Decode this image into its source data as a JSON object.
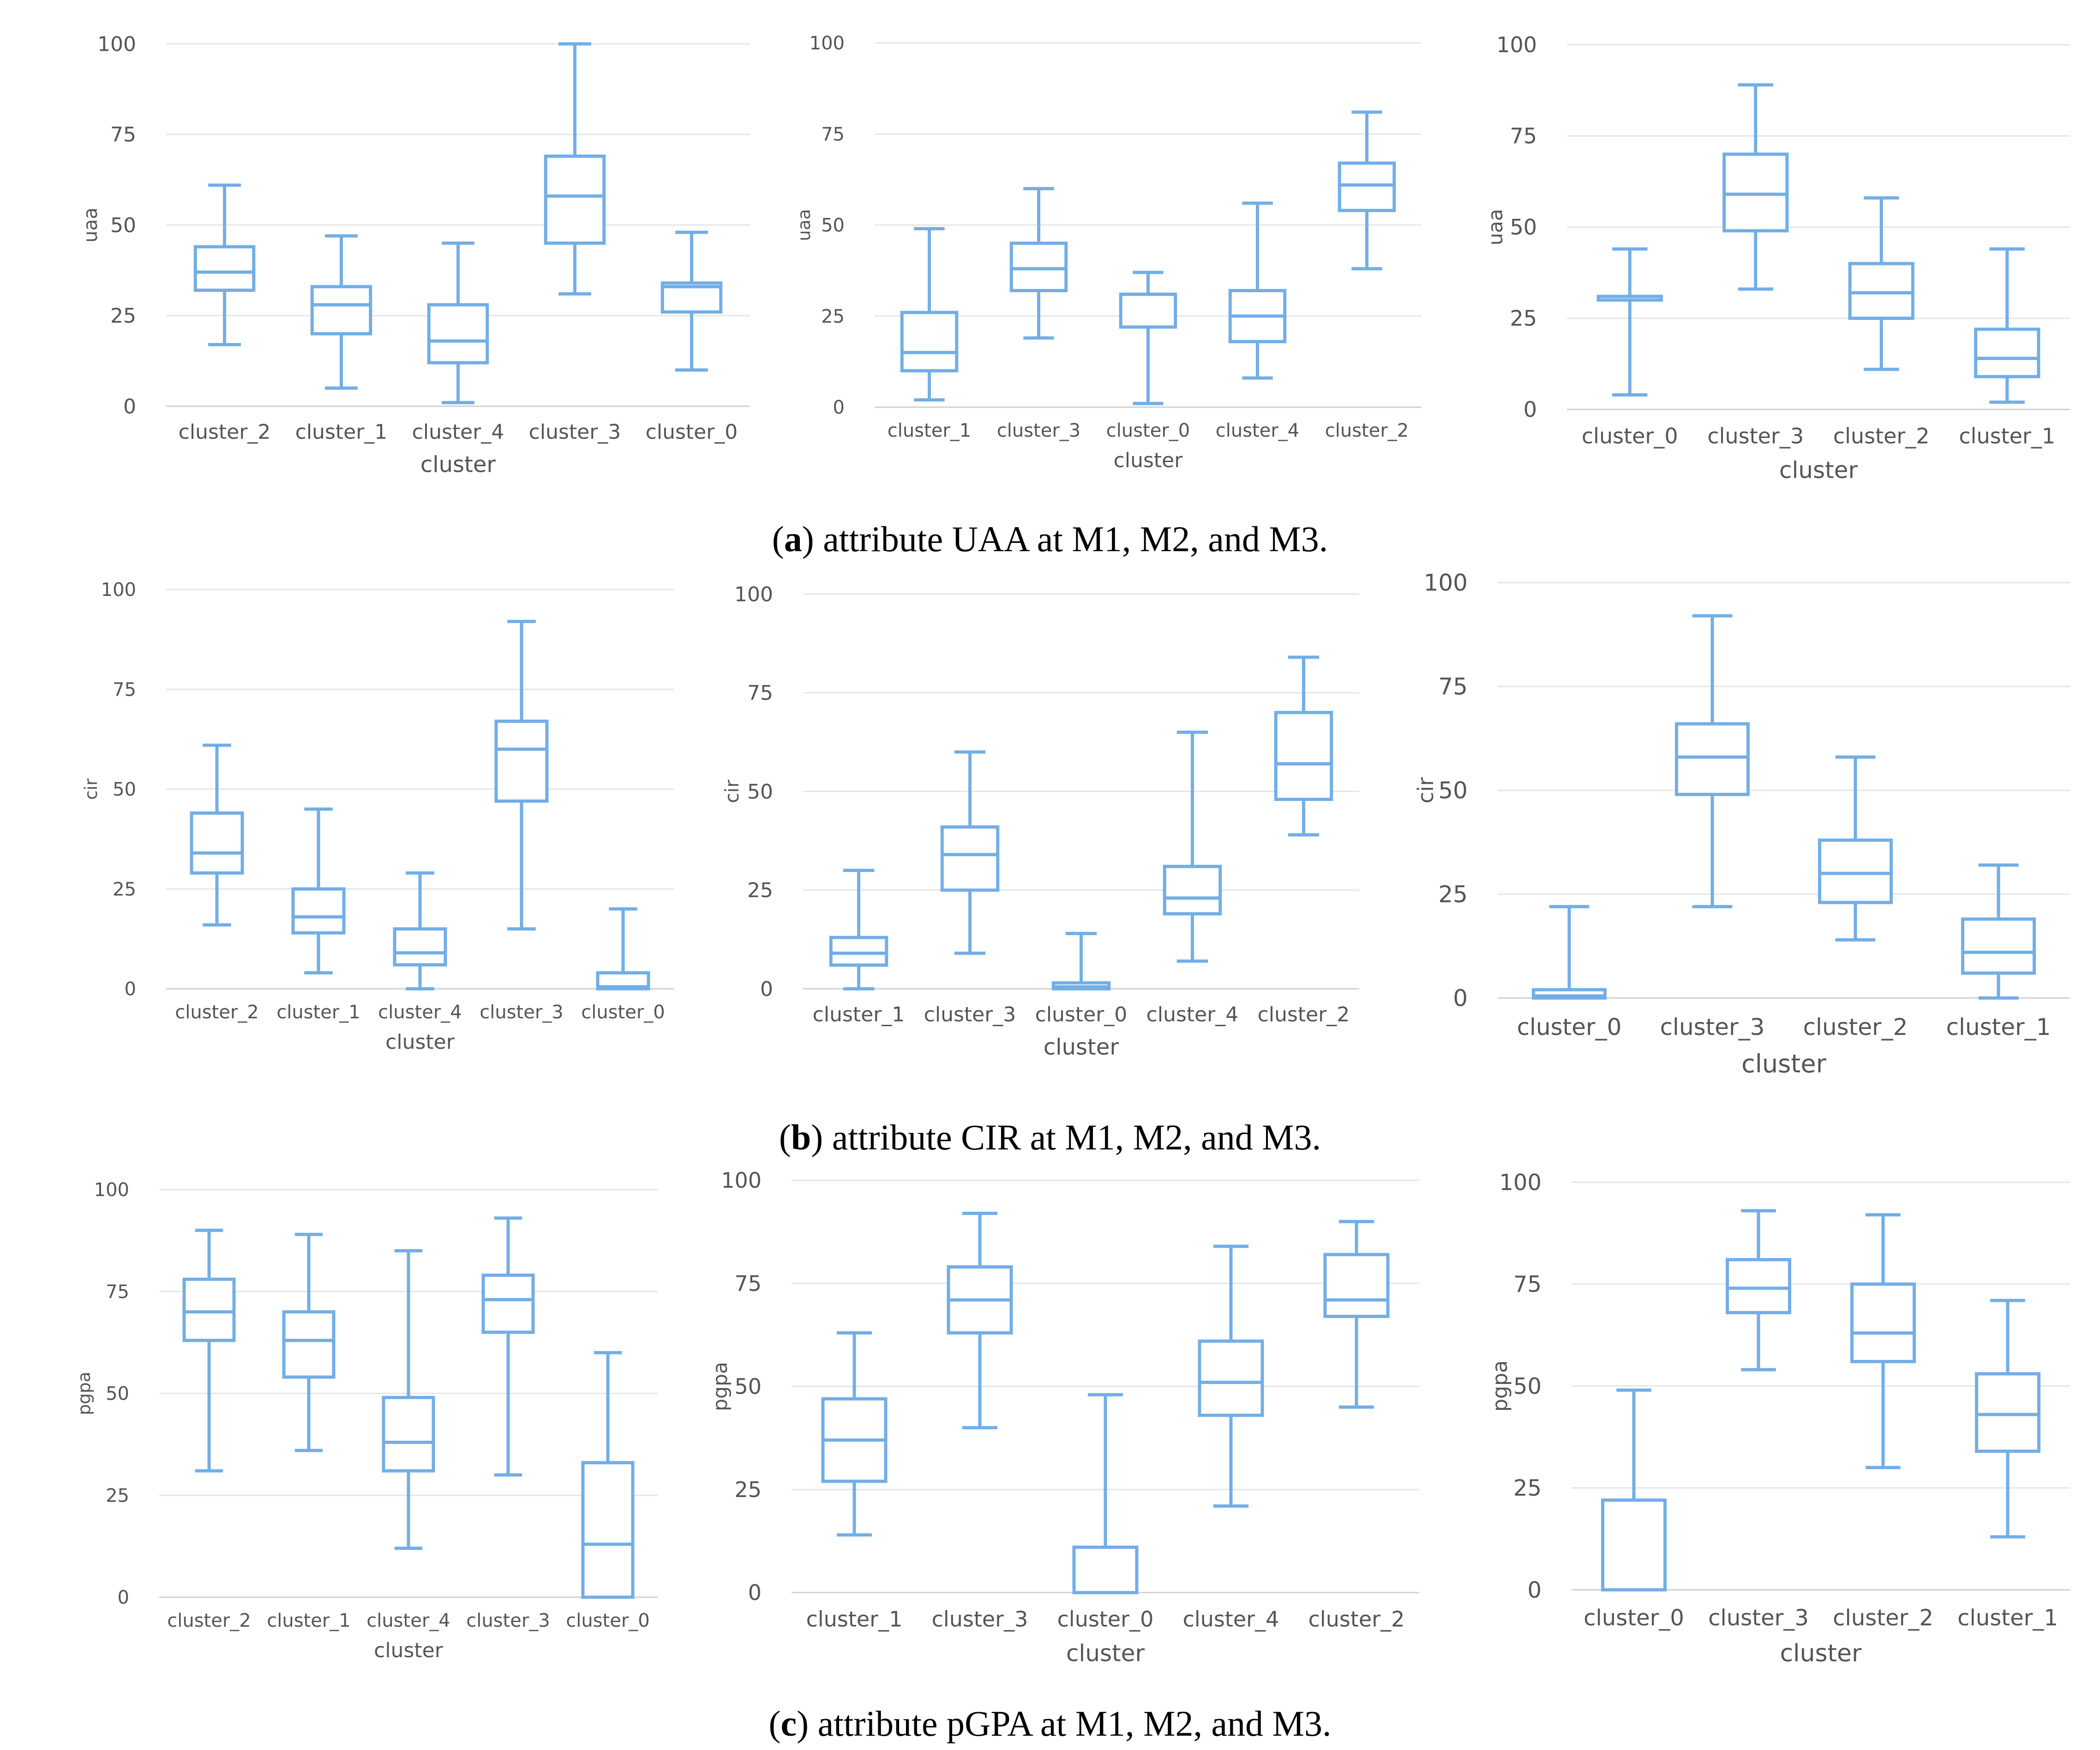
{
  "figure": {
    "captions": [
      {
        "letter": "a",
        "text": ") attribute UAA at M1, M2, and M3."
      },
      {
        "letter": "b",
        "text": ") attribute CIR at M1, M2, and M3."
      },
      {
        "letter": "c",
        "text": ") attribute pGPA at M1, M2, and M3."
      }
    ]
  },
  "style": {
    "box_color": "#72aee6",
    "grid_color": "#e6e6e6",
    "tick_color": "#555555"
  },
  "chart_data": [
    {
      "type": "box",
      "panel": "a-M1",
      "xlabel": "cluster",
      "ylabel": "uaa",
      "ylim": [
        0,
        100
      ],
      "yticks": [
        0,
        25,
        50,
        75,
        100
      ],
      "categories": [
        "cluster_2",
        "cluster_1",
        "cluster_4",
        "cluster_3",
        "cluster_0"
      ],
      "boxes": [
        {
          "min": 17,
          "q1": 32,
          "median": 37,
          "q3": 44,
          "max": 61
        },
        {
          "min": 5,
          "q1": 20,
          "median": 28,
          "q3": 33,
          "max": 47
        },
        {
          "min": 1,
          "q1": 12,
          "median": 18,
          "q3": 28,
          "max": 45
        },
        {
          "min": 31,
          "q1": 45,
          "median": 58,
          "q3": 69,
          "max": 100
        },
        {
          "min": 10,
          "q1": 26,
          "median": 33,
          "q3": 34,
          "max": 48
        }
      ]
    },
    {
      "type": "box",
      "panel": "a-M2",
      "xlabel": "cluster",
      "ylabel": "uaa",
      "ylim": [
        0,
        100
      ],
      "yticks": [
        0,
        25,
        50,
        75,
        100
      ],
      "categories": [
        "cluster_1",
        "cluster_3",
        "cluster_0",
        "cluster_4",
        "cluster_2"
      ],
      "boxes": [
        {
          "min": 2,
          "q1": 10,
          "median": 15,
          "q3": 26,
          "max": 49
        },
        {
          "min": 19,
          "q1": 32,
          "median": 38,
          "q3": 45,
          "max": 60
        },
        {
          "min": 1,
          "q1": 22,
          "median": 31,
          "q3": 31,
          "max": 37
        },
        {
          "min": 8,
          "q1": 18,
          "median": 25,
          "q3": 32,
          "max": 56
        },
        {
          "min": 38,
          "q1": 54,
          "median": 61,
          "q3": 67,
          "max": 81
        }
      ]
    },
    {
      "type": "box",
      "panel": "a-M3",
      "xlabel": "cluster",
      "ylabel": "uaa",
      "ylim": [
        0,
        100
      ],
      "yticks": [
        0,
        25,
        50,
        75,
        100
      ],
      "categories": [
        "cluster_0",
        "cluster_3",
        "cluster_2",
        "cluster_1"
      ],
      "boxes": [
        {
          "min": 4,
          "q1": 30,
          "median": 31,
          "q3": 31,
          "max": 44
        },
        {
          "min": 33,
          "q1": 49,
          "median": 59,
          "q3": 70,
          "max": 89
        },
        {
          "min": 11,
          "q1": 25,
          "median": 32,
          "q3": 40,
          "max": 58
        },
        {
          "min": 2,
          "q1": 9,
          "median": 14,
          "q3": 22,
          "max": 44
        }
      ]
    },
    {
      "type": "box",
      "panel": "b-M1",
      "xlabel": "cluster",
      "ylabel": "cir",
      "ylim": [
        0,
        100
      ],
      "yticks": [
        0,
        25,
        50,
        75,
        100
      ],
      "categories": [
        "cluster_2",
        "cluster_1",
        "cluster_4",
        "cluster_3",
        "cluster_0"
      ],
      "boxes": [
        {
          "min": 16,
          "q1": 29,
          "median": 34,
          "q3": 44,
          "max": 61
        },
        {
          "min": 4,
          "q1": 14,
          "median": 18,
          "q3": 25,
          "max": 45
        },
        {
          "min": 0,
          "q1": 6,
          "median": 9,
          "q3": 15,
          "max": 29
        },
        {
          "min": 15,
          "q1": 47,
          "median": 60,
          "q3": 67,
          "max": 92
        },
        {
          "min": 0,
          "q1": 0,
          "median": 0.5,
          "q3": 4,
          "max": 20
        }
      ]
    },
    {
      "type": "box",
      "panel": "b-M2",
      "xlabel": "cluster",
      "ylabel": "cir",
      "ylim": [
        0,
        100
      ],
      "yticks": [
        0,
        25,
        50,
        75,
        100
      ],
      "categories": [
        "cluster_1",
        "cluster_3",
        "cluster_0",
        "cluster_4",
        "cluster_2"
      ],
      "boxes": [
        {
          "min": 0,
          "q1": 6,
          "median": 9,
          "q3": 13,
          "max": 30
        },
        {
          "min": 9,
          "q1": 25,
          "median": 34,
          "q3": 41,
          "max": 60
        },
        {
          "min": 0,
          "q1": 0,
          "median": 0.5,
          "q3": 1.5,
          "max": 14
        },
        {
          "min": 7,
          "q1": 19,
          "median": 23,
          "q3": 31,
          "max": 65
        },
        {
          "min": 39,
          "q1": 48,
          "median": 57,
          "q3": 70,
          "max": 84
        }
      ]
    },
    {
      "type": "box",
      "panel": "b-M3",
      "xlabel": "cluster",
      "ylabel": "cir",
      "ylim": [
        0,
        100
      ],
      "yticks": [
        0,
        25,
        50,
        75,
        100
      ],
      "categories": [
        "cluster_0",
        "cluster_3",
        "cluster_2",
        "cluster_1"
      ],
      "boxes": [
        {
          "min": 0,
          "q1": 0,
          "median": 0.5,
          "q3": 2,
          "max": 22
        },
        {
          "min": 22,
          "q1": 49,
          "median": 58,
          "q3": 66,
          "max": 92
        },
        {
          "min": 14,
          "q1": 23,
          "median": 30,
          "q3": 38,
          "max": 58
        },
        {
          "min": 0,
          "q1": 6,
          "median": 11,
          "q3": 19,
          "max": 32
        }
      ]
    },
    {
      "type": "box",
      "panel": "c-M1",
      "xlabel": "cluster",
      "ylabel": "pgpa",
      "ylim": [
        0,
        100
      ],
      "yticks": [
        0,
        25,
        50,
        75,
        100
      ],
      "categories": [
        "cluster_2",
        "cluster_1",
        "cluster_4",
        "cluster_3",
        "cluster_0"
      ],
      "boxes": [
        {
          "min": 31,
          "q1": 63,
          "median": 70,
          "q3": 78,
          "max": 90
        },
        {
          "min": 36,
          "q1": 54,
          "median": 63,
          "q3": 70,
          "max": 89
        },
        {
          "min": 12,
          "q1": 31,
          "median": 38,
          "q3": 49,
          "max": 85
        },
        {
          "min": 30,
          "q1": 65,
          "median": 73,
          "q3": 79,
          "max": 93
        },
        {
          "min": 0,
          "q1": 0,
          "median": 13,
          "q3": 33,
          "max": 60
        }
      ]
    },
    {
      "type": "box",
      "panel": "c-M2",
      "xlabel": "cluster",
      "ylabel": "pgpa",
      "ylim": [
        0,
        100
      ],
      "yticks": [
        0,
        25,
        50,
        75,
        100
      ],
      "categories": [
        "cluster_1",
        "cluster_3",
        "cluster_0",
        "cluster_4",
        "cluster_2"
      ],
      "boxes": [
        {
          "min": 14,
          "q1": 27,
          "median": 37,
          "q3": 47,
          "max": 63
        },
        {
          "min": 40,
          "q1": 63,
          "median": 71,
          "q3": 79,
          "max": 92
        },
        {
          "min": 0,
          "q1": 0,
          "median": 0,
          "q3": 11,
          "max": 48
        },
        {
          "min": 21,
          "q1": 43,
          "median": 51,
          "q3": 61,
          "max": 84
        },
        {
          "min": 45,
          "q1": 67,
          "median": 71,
          "q3": 82,
          "max": 90
        }
      ]
    },
    {
      "type": "box",
      "panel": "c-M3",
      "xlabel": "cluster",
      "ylabel": "pgpa",
      "ylim": [
        0,
        100
      ],
      "yticks": [
        0,
        25,
        50,
        75,
        100
      ],
      "categories": [
        "cluster_0",
        "cluster_3",
        "cluster_2",
        "cluster_1"
      ],
      "boxes": [
        {
          "min": 0,
          "q1": 0,
          "median": 0,
          "q3": 22,
          "max": 49
        },
        {
          "min": 54,
          "q1": 68,
          "median": 74,
          "q3": 81,
          "max": 93
        },
        {
          "min": 30,
          "q1": 56,
          "median": 63,
          "q3": 75,
          "max": 92
        },
        {
          "min": 13,
          "q1": 34,
          "median": 43,
          "q3": 53,
          "max": 71
        }
      ]
    }
  ]
}
